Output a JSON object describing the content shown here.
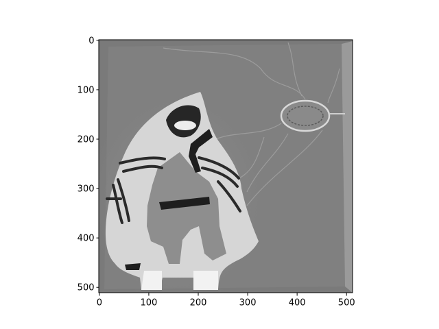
{
  "chart_data": {
    "type": "heatmap",
    "title": "",
    "xlabel": "",
    "ylabel": "",
    "xlim": [
      0,
      511
    ],
    "ylim": [
      511,
      0
    ],
    "y_inverted": true,
    "colormap": "gray",
    "grid": false,
    "x_ticks": [
      "0",
      "100",
      "200",
      "300",
      "400",
      "500"
    ],
    "y_ticks": [
      "0",
      "100",
      "200",
      "300",
      "400",
      "500"
    ]
  },
  "colors": {
    "background": "#808080",
    "figure": "#ffffff",
    "dark": "#1a1a1a",
    "light": "#e8e8e8"
  }
}
